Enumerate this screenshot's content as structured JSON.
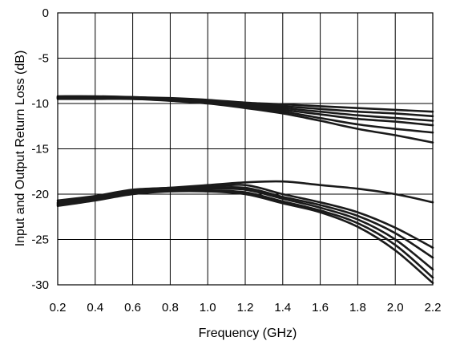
{
  "chart_data": {
    "type": "line",
    "title": "",
    "xlabel": "Frequency (GHz)",
    "ylabel": "Input and Output Return Loss (dB)",
    "xlim": [
      0.2,
      2.2
    ],
    "ylim": [
      -30,
      0
    ],
    "grid": true,
    "legend": "none",
    "x_ticks": [
      0.2,
      0.4,
      0.6,
      0.8,
      1.0,
      1.2,
      1.4,
      1.6,
      1.8,
      2.0,
      2.2
    ],
    "x_tick_labels": [
      "0.2",
      "0.4",
      "0.6",
      "0.8",
      "1.0",
      "1.2",
      "1.4",
      "1.6",
      "1.8",
      "2.0",
      "2.2"
    ],
    "y_ticks": [
      0,
      -5,
      -10,
      -15,
      -20,
      -25,
      -30
    ],
    "y_tick_labels": [
      "0",
      "-5",
      "-10",
      "-15",
      "-20",
      "-25",
      "-30"
    ],
    "line_color": "#1a1a1a",
    "series": [
      {
        "x": [
          0.2,
          0.4,
          0.6,
          0.8,
          1.0,
          1.2,
          1.4,
          1.6,
          1.8,
          2.0,
          2.2
        ],
        "y": [
          -9.2,
          -9.2,
          -9.3,
          -9.4,
          -9.6,
          -9.9,
          -10.1,
          -10.3,
          -10.5,
          -10.7,
          -10.9
        ]
      },
      {
        "x": [
          0.2,
          0.4,
          0.6,
          0.8,
          1.0,
          1.2,
          1.4,
          1.6,
          1.8,
          2.0,
          2.2
        ],
        "y": [
          -9.3,
          -9.3,
          -9.3,
          -9.5,
          -9.7,
          -10.0,
          -10.3,
          -10.6,
          -10.9,
          -11.1,
          -11.4
        ]
      },
      {
        "x": [
          0.2,
          0.4,
          0.6,
          0.8,
          1.0,
          1.2,
          1.4,
          1.6,
          1.8,
          2.0,
          2.2
        ],
        "y": [
          -9.3,
          -9.3,
          -9.4,
          -9.5,
          -9.8,
          -10.1,
          -10.5,
          -10.9,
          -11.3,
          -11.6,
          -11.9
        ]
      },
      {
        "x": [
          0.2,
          0.4,
          0.6,
          0.8,
          1.0,
          1.2,
          1.4,
          1.6,
          1.8,
          2.0,
          2.2
        ],
        "y": [
          -9.4,
          -9.4,
          -9.4,
          -9.6,
          -9.8,
          -10.2,
          -10.7,
          -11.2,
          -11.7,
          -12.0,
          -12.4
        ]
      },
      {
        "x": [
          0.2,
          0.4,
          0.6,
          0.8,
          1.0,
          1.2,
          1.4,
          1.6,
          1.8,
          2.0,
          2.2
        ],
        "y": [
          -9.4,
          -9.4,
          -9.5,
          -9.6,
          -9.9,
          -10.3,
          -10.9,
          -11.6,
          -12.3,
          -12.8,
          -13.2
        ]
      },
      {
        "x": [
          0.2,
          0.4,
          0.6,
          0.8,
          1.0,
          1.2,
          1.4,
          1.6,
          1.8,
          2.0,
          2.2
        ],
        "y": [
          -9.5,
          -9.5,
          -9.5,
          -9.7,
          -10.0,
          -10.5,
          -11.1,
          -11.9,
          -12.8,
          -13.5,
          -14.3
        ]
      },
      {
        "x": [
          0.2,
          0.4,
          0.6,
          0.8,
          1.0,
          1.2,
          1.4,
          1.6,
          1.8,
          2.0,
          2.2
        ],
        "y": [
          -20.7,
          -20.2,
          -19.5,
          -19.3,
          -19.0,
          -18.7,
          -18.6,
          -19.0,
          -19.4,
          -20.0,
          -20.9
        ]
      },
      {
        "x": [
          0.2,
          0.4,
          0.6,
          0.8,
          1.0,
          1.2,
          1.4,
          1.6,
          1.8,
          2.0,
          2.2
        ],
        "y": [
          -20.9,
          -20.3,
          -19.6,
          -19.3,
          -19.2,
          -19.0,
          -20.0,
          -20.9,
          -22.0,
          -23.7,
          -25.9
        ]
      },
      {
        "x": [
          0.2,
          0.4,
          0.6,
          0.8,
          1.0,
          1.2,
          1.4,
          1.6,
          1.8,
          2.0,
          2.2
        ],
        "y": [
          -21.0,
          -20.4,
          -19.7,
          -19.4,
          -19.3,
          -19.3,
          -20.3,
          -21.2,
          -22.4,
          -24.3,
          -27.0
        ]
      },
      {
        "x": [
          0.2,
          0.4,
          0.6,
          0.8,
          1.0,
          1.2,
          1.4,
          1.6,
          1.8,
          2.0,
          2.2
        ],
        "y": [
          -21.1,
          -20.5,
          -19.8,
          -19.5,
          -19.4,
          -19.5,
          -20.5,
          -21.5,
          -22.8,
          -25.0,
          -28.3
        ]
      },
      {
        "x": [
          0.2,
          0.4,
          0.6,
          0.8,
          1.0,
          1.2,
          1.4,
          1.6,
          1.8,
          2.0,
          2.2
        ],
        "y": [
          -21.2,
          -20.6,
          -19.9,
          -19.6,
          -19.6,
          -19.8,
          -20.8,
          -21.8,
          -23.2,
          -25.6,
          -29.2
        ]
      },
      {
        "x": [
          0.2,
          0.4,
          0.6,
          0.8,
          1.0,
          1.2,
          1.4,
          1.6,
          1.8,
          2.0,
          2.2
        ],
        "y": [
          -21.3,
          -20.7,
          -20.0,
          -19.7,
          -19.7,
          -20.0,
          -21.0,
          -22.0,
          -23.6,
          -26.2,
          -29.8
        ]
      }
    ]
  }
}
